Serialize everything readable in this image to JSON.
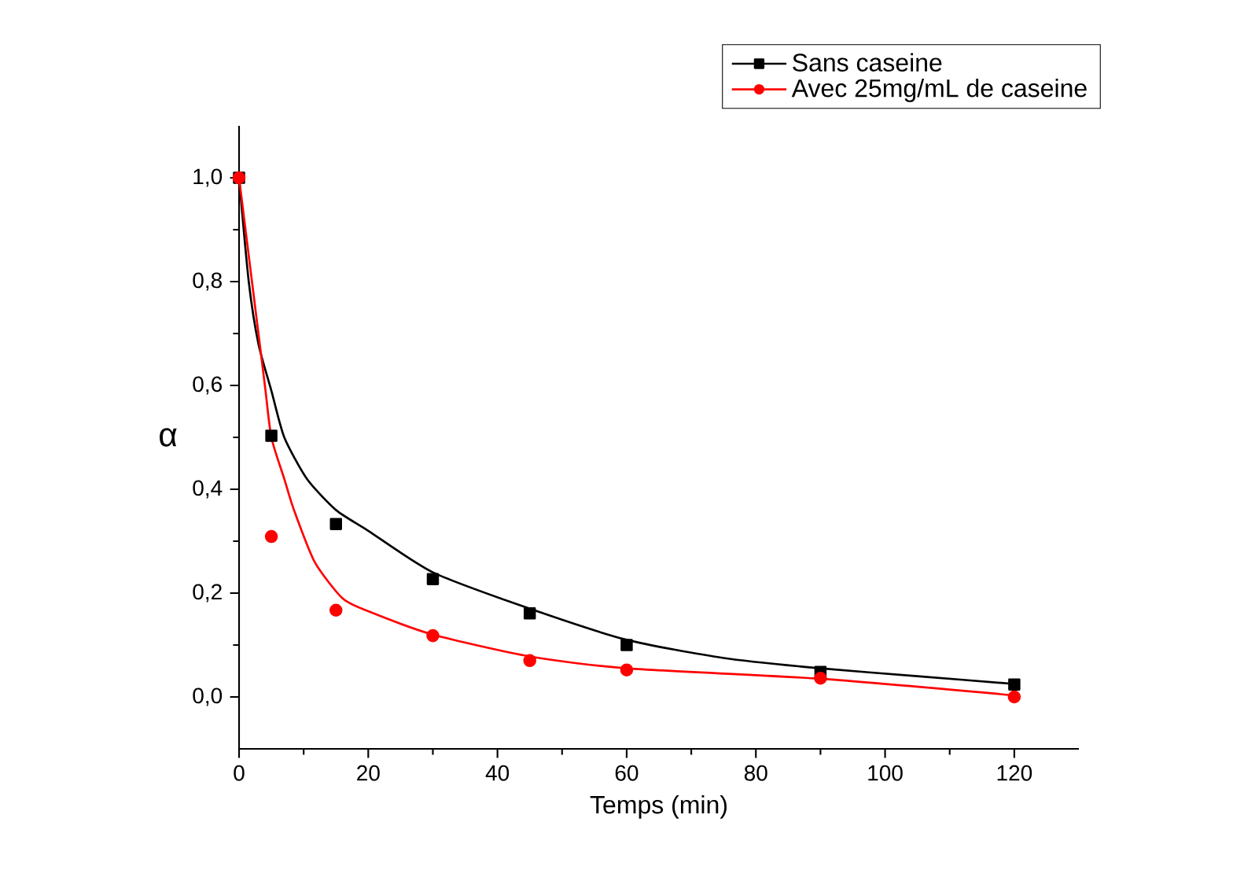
{
  "chart_data": {
    "type": "scatter",
    "xlabel": "Temps (min)",
    "ylabel": "α",
    "xlim": [
      0,
      130
    ],
    "ylim": [
      -0.1,
      1.1
    ],
    "xticks": [
      0,
      20,
      40,
      60,
      80,
      100,
      120
    ],
    "yticks": [
      {
        "value": 0,
        "label": "0,0"
      },
      {
        "value": 0.2,
        "label": "0,2"
      },
      {
        "value": 0.4,
        "label": "0,4"
      },
      {
        "value": 0.6,
        "label": "0,6"
      },
      {
        "value": 0.8,
        "label": "0,8"
      },
      {
        "value": 1.0,
        "label": "1,0"
      }
    ],
    "grid": false,
    "legend": "top right",
    "series": [
      {
        "name": "Sans caseine",
        "marker": "square",
        "color": "#000000",
        "x": [
          0,
          5,
          15,
          30,
          45,
          60,
          90,
          120
        ],
        "values": [
          1.0,
          0.503,
          0.333,
          0.227,
          0.161,
          0.1,
          0.048,
          0.024
        ]
      },
      {
        "name": "Avec 25mg/mL de caseine",
        "marker": "circle",
        "color": "#ff0000",
        "x": [
          0,
          5,
          15,
          30,
          45,
          60,
          90,
          120
        ],
        "values": [
          1.0,
          0.309,
          0.167,
          0.118,
          0.07,
          0.052,
          0.036,
          0.0
        ]
      },
      {
        "type": "line",
        "marker": "none",
        "color": "#000000",
        "x": [
          0,
          1.5,
          3,
          5,
          7,
          10.5,
          15,
          20,
          30,
          45,
          60,
          75,
          90,
          105,
          120
        ],
        "values": [
          1.0,
          0.8,
          0.68,
          0.59,
          0.5,
          0.42,
          0.36,
          0.32,
          0.24,
          0.17,
          0.11,
          0.075,
          0.055,
          0.04,
          0.025
        ]
      },
      {
        "type": "line",
        "marker": "none",
        "color": "#ff0000",
        "x": [
          0,
          2,
          4,
          5,
          7,
          8.5,
          11.7,
          16,
          20,
          30,
          45,
          60,
          90,
          120
        ],
        "values": [
          1.0,
          0.8,
          0.6,
          0.5,
          0.42,
          0.36,
          0.26,
          0.19,
          0.165,
          0.12,
          0.078,
          0.055,
          0.035,
          0.003
        ]
      }
    ]
  }
}
